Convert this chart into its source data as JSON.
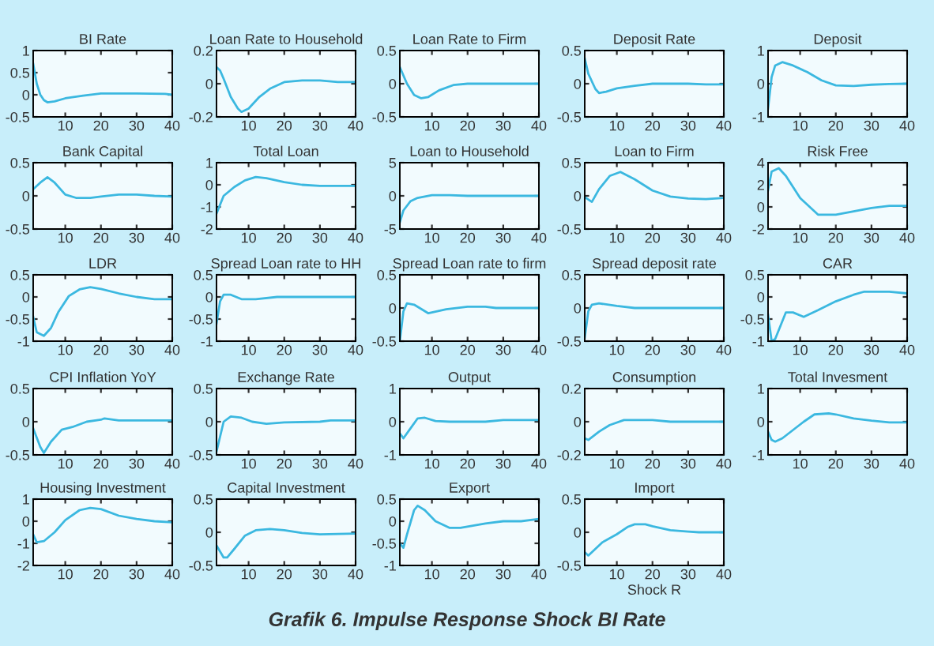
{
  "chart_data": [
    {
      "type": "line",
      "title": "BI Rate",
      "x": [
        1,
        2,
        3,
        4,
        5,
        7,
        10,
        15,
        20,
        30,
        38,
        40
      ],
      "series": [
        {
          "color": "#3bb8e0",
          "values": [
            0.7,
            0.25,
            0.0,
            -0.12,
            -0.17,
            -0.15,
            -0.08,
            -0.02,
            0.03,
            0.03,
            0.02,
            0.0
          ]
        }
      ],
      "xlim": [
        1,
        40
      ],
      "ylim": [
        -0.5,
        1
      ],
      "xticks": [
        10,
        20,
        30,
        40
      ],
      "yticks": [
        -0.5,
        0,
        0.5,
        1
      ]
    },
    {
      "type": "line",
      "title": "Loan Rate to Household",
      "x": [
        1,
        2,
        3,
        5,
        7,
        8,
        10,
        13,
        16,
        20,
        25,
        30,
        35,
        40
      ],
      "series": [
        {
          "color": "#3bb8e0",
          "values": [
            0.1,
            0.08,
            0.03,
            -0.08,
            -0.15,
            -0.17,
            -0.15,
            -0.08,
            -0.03,
            0.01,
            0.02,
            0.02,
            0.01,
            0.01
          ]
        }
      ],
      "xlim": [
        1,
        40
      ],
      "ylim": [
        -0.2,
        0.2
      ],
      "xticks": [
        10,
        20,
        30,
        40
      ],
      "yticks": [
        -0.2,
        0,
        0.2
      ]
    },
    {
      "type": "line",
      "title": "Loan Rate to Firm",
      "x": [
        1,
        3,
        5,
        7,
        9,
        12,
        16,
        20,
        30,
        40
      ],
      "series": [
        {
          "color": "#3bb8e0",
          "values": [
            0.25,
            0.0,
            -0.17,
            -0.22,
            -0.2,
            -0.1,
            -0.02,
            0.0,
            0.0,
            0.0
          ]
        }
      ],
      "xlim": [
        1,
        40
      ],
      "ylim": [
        -0.5,
        0.5
      ],
      "xticks": [
        10,
        20,
        30,
        40
      ],
      "yticks": [
        -0.5,
        0,
        0.5
      ]
    },
    {
      "type": "line",
      "title": "Deposit Rate",
      "x": [
        1,
        2,
        4,
        5,
        7,
        10,
        15,
        20,
        30,
        35,
        40
      ],
      "series": [
        {
          "color": "#3bb8e0",
          "values": [
            0.38,
            0.15,
            -0.08,
            -0.14,
            -0.12,
            -0.07,
            -0.03,
            0.0,
            0.0,
            -0.01,
            -0.01
          ]
        }
      ],
      "xlim": [
        1,
        40
      ],
      "ylim": [
        -0.5,
        0.5
      ],
      "xticks": [
        10,
        20,
        30,
        40
      ],
      "yticks": [
        -0.5,
        0,
        0.5
      ]
    },
    {
      "type": "line",
      "title": "Deposit",
      "x": [
        1,
        2,
        3,
        5,
        8,
        12,
        16,
        20,
        25,
        30,
        35,
        40
      ],
      "series": [
        {
          "color": "#3bb8e0",
          "values": [
            -0.75,
            0.2,
            0.55,
            0.65,
            0.55,
            0.35,
            0.1,
            -0.05,
            -0.07,
            -0.03,
            -0.01,
            0.0
          ]
        }
      ],
      "xlim": [
        1,
        40
      ],
      "ylim": [
        -1,
        1
      ],
      "xticks": [
        10,
        20,
        30,
        40
      ],
      "yticks": [
        -1,
        0,
        1
      ]
    },
    {
      "type": "line",
      "title": "Bank Capital",
      "x": [
        1,
        3,
        5,
        7,
        10,
        13,
        17,
        20,
        25,
        30,
        35,
        40
      ],
      "series": [
        {
          "color": "#3bb8e0",
          "values": [
            0.1,
            0.2,
            0.28,
            0.2,
            0.02,
            -0.03,
            -0.03,
            -0.01,
            0.02,
            0.02,
            0.0,
            -0.01
          ]
        }
      ],
      "xlim": [
        1,
        40
      ],
      "ylim": [
        -0.5,
        0.5
      ],
      "xticks": [
        10,
        20,
        30,
        40
      ],
      "yticks": [
        -0.5,
        0,
        0.5
      ]
    },
    {
      "type": "line",
      "title": "Total Loan",
      "x": [
        1,
        3,
        6,
        9,
        12,
        15,
        20,
        25,
        30,
        40
      ],
      "series": [
        {
          "color": "#3bb8e0",
          "values": [
            -1.3,
            -0.5,
            -0.1,
            0.2,
            0.35,
            0.3,
            0.12,
            0.0,
            -0.05,
            -0.05
          ]
        }
      ],
      "xlim": [
        1,
        40
      ],
      "ylim": [
        -2,
        1
      ],
      "xticks": [
        10,
        20,
        30,
        40
      ],
      "yticks": [
        -2,
        -1,
        0,
        1
      ]
    },
    {
      "type": "line",
      "title": "Loan to Household",
      "x": [
        1,
        2,
        4,
        6,
        10,
        15,
        20,
        30,
        40
      ],
      "series": [
        {
          "color": "#3bb8e0",
          "values": [
            -4.0,
            -2.2,
            -0.8,
            -0.3,
            0.1,
            0.1,
            0.0,
            0.0,
            0.0
          ]
        }
      ],
      "xlim": [
        1,
        40
      ],
      "ylim": [
        -5,
        5
      ],
      "xticks": [
        10,
        20,
        30,
        40
      ],
      "yticks": [
        -5,
        0,
        5
      ]
    },
    {
      "type": "line",
      "title": "Loan to Firm",
      "x": [
        1,
        3,
        5,
        8,
        11,
        15,
        20,
        25,
        30,
        35,
        40
      ],
      "series": [
        {
          "color": "#3bb8e0",
          "values": [
            -0.02,
            -0.09,
            0.1,
            0.3,
            0.36,
            0.25,
            0.08,
            -0.01,
            -0.04,
            -0.05,
            -0.03
          ]
        }
      ],
      "xlim": [
        1,
        40
      ],
      "ylim": [
        -0.5,
        0.5
      ],
      "xticks": [
        10,
        20,
        30,
        40
      ],
      "yticks": [
        -0.5,
        0,
        0.5
      ]
    },
    {
      "type": "line",
      "title": "Risk Free",
      "x": [
        1,
        2,
        4,
        6,
        10,
        15,
        20,
        25,
        30,
        35,
        40
      ],
      "series": [
        {
          "color": "#3bb8e0",
          "values": [
            1.5,
            3.2,
            3.5,
            2.8,
            0.8,
            -0.7,
            -0.7,
            -0.4,
            -0.1,
            0.1,
            0.1
          ]
        }
      ],
      "xlim": [
        1,
        40
      ],
      "ylim": [
        -2,
        4
      ],
      "xticks": [
        10,
        20,
        30,
        40
      ],
      "yticks": [
        -2,
        0,
        2,
        4
      ]
    },
    {
      "type": "line",
      "title": "LDR",
      "x": [
        1,
        2,
        4,
        6,
        8,
        11,
        14,
        17,
        20,
        25,
        30,
        35,
        40
      ],
      "series": [
        {
          "color": "#3bb8e0",
          "values": [
            -0.45,
            -0.8,
            -0.88,
            -0.7,
            -0.35,
            0.02,
            0.17,
            0.22,
            0.18,
            0.08,
            0.0,
            -0.05,
            -0.05
          ]
        }
      ],
      "xlim": [
        1,
        40
      ],
      "ylim": [
        -1,
        0.5
      ],
      "xticks": [
        10,
        20,
        30,
        40
      ],
      "yticks": [
        -1,
        -0.5,
        0,
        0.5
      ]
    },
    {
      "type": "line",
      "title": "Spread Loan rate to HH",
      "x": [
        1,
        2,
        3,
        5,
        8,
        12,
        18,
        40
      ],
      "series": [
        {
          "color": "#3bb8e0",
          "values": [
            -0.6,
            -0.1,
            0.05,
            0.05,
            -0.05,
            -0.05,
            0.0,
            0.0
          ]
        }
      ],
      "xlim": [
        1,
        40
      ],
      "ylim": [
        -1,
        0.5
      ],
      "xticks": [
        10,
        20,
        30,
        40
      ],
      "yticks": [
        -1,
        -0.5,
        0,
        0.5
      ]
    },
    {
      "type": "line",
      "title": "Spread Loan rate to firm",
      "x": [
        1,
        2,
        3,
        5,
        9,
        14,
        20,
        25,
        28,
        40
      ],
      "series": [
        {
          "color": "#3bb8e0",
          "values": [
            -0.5,
            -0.05,
            0.07,
            0.05,
            -0.08,
            -0.02,
            0.02,
            0.02,
            0.0,
            0.0
          ]
        }
      ],
      "xlim": [
        1,
        40
      ],
      "ylim": [
        -0.5,
        0.5
      ],
      "xticks": [
        10,
        20,
        30,
        40
      ],
      "yticks": [
        -0.5,
        0,
        0.5
      ]
    },
    {
      "type": "line",
      "title": "Spread deposit rate",
      "x": [
        1,
        2,
        3,
        5,
        10,
        15,
        40
      ],
      "series": [
        {
          "color": "#3bb8e0",
          "values": [
            -0.45,
            -0.05,
            0.05,
            0.07,
            0.03,
            0.0,
            0.0
          ]
        }
      ],
      "xlim": [
        1,
        40
      ],
      "ylim": [
        -0.5,
        0.5
      ],
      "xticks": [
        10,
        20,
        30,
        40
      ],
      "yticks": [
        -0.5,
        0,
        0.5
      ]
    },
    {
      "type": "line",
      "title": "CAR",
      "x": [
        1,
        2,
        3,
        6,
        8,
        11,
        15,
        20,
        25,
        28,
        35,
        40
      ],
      "series": [
        {
          "color": "#3bb8e0",
          "values": [
            -0.4,
            -1.0,
            -0.95,
            -0.35,
            -0.35,
            -0.45,
            -0.3,
            -0.1,
            0.05,
            0.12,
            0.12,
            0.08
          ]
        }
      ],
      "xlim": [
        1,
        40
      ],
      "ylim": [
        -1,
        0.5
      ],
      "xticks": [
        10,
        20,
        30,
        40
      ],
      "yticks": [
        -1,
        -0.5,
        0,
        0.5
      ]
    },
    {
      "type": "line",
      "title": "CPI Inflation YoY",
      "x": [
        1,
        3,
        4,
        6,
        9,
        12,
        16,
        20,
        21,
        25,
        40
      ],
      "series": [
        {
          "color": "#3bb8e0",
          "values": [
            -0.1,
            -0.38,
            -0.47,
            -0.3,
            -0.12,
            -0.08,
            0.0,
            0.03,
            0.05,
            0.02,
            0.02
          ]
        }
      ],
      "xlim": [
        1,
        40
      ],
      "ylim": [
        -0.5,
        0.5
      ],
      "xticks": [
        10,
        20,
        30,
        40
      ],
      "yticks": [
        -0.5,
        0,
        0.5
      ]
    },
    {
      "type": "line",
      "title": "Exchange Rate",
      "x": [
        1,
        3,
        5,
        8,
        11,
        15,
        20,
        30,
        33,
        40
      ],
      "series": [
        {
          "color": "#3bb8e0",
          "values": [
            -0.45,
            0.0,
            0.08,
            0.06,
            0.0,
            -0.03,
            -0.01,
            0.0,
            0.02,
            0.02
          ]
        }
      ],
      "xlim": [
        1,
        40
      ],
      "ylim": [
        -0.5,
        0.5
      ],
      "xticks": [
        10,
        20,
        30,
        40
      ],
      "yticks": [
        -0.5,
        0,
        0.5
      ]
    },
    {
      "type": "line",
      "title": "Output",
      "x": [
        1,
        2,
        4,
        6,
        8,
        11,
        15,
        25,
        30,
        40
      ],
      "series": [
        {
          "color": "#3bb8e0",
          "values": [
            -0.35,
            -0.5,
            -0.2,
            0.1,
            0.12,
            0.02,
            0.0,
            0.0,
            0.05,
            0.05
          ]
        }
      ],
      "xlim": [
        1,
        40
      ],
      "ylim": [
        -1,
        1
      ],
      "xticks": [
        10,
        20,
        30,
        40
      ],
      "yticks": [
        -1,
        0,
        1
      ]
    },
    {
      "type": "line",
      "title": "Consumption",
      "x": [
        1,
        2,
        5,
        8,
        12,
        20,
        25,
        40
      ],
      "series": [
        {
          "color": "#3bb8e0",
          "values": [
            -0.1,
            -0.11,
            -0.06,
            -0.02,
            0.01,
            0.01,
            0.0,
            0.0
          ]
        }
      ],
      "xlim": [
        1,
        40
      ],
      "ylim": [
        -0.2,
        0.2
      ],
      "xticks": [
        10,
        20,
        30,
        40
      ],
      "yticks": [
        -0.2,
        0,
        0.2
      ]
    },
    {
      "type": "line",
      "title": "Total Invesment",
      "x": [
        1,
        2,
        3,
        5,
        8,
        11,
        14,
        18,
        20,
        25,
        30,
        35,
        40
      ],
      "series": [
        {
          "color": "#3bb8e0",
          "values": [
            -0.3,
            -0.55,
            -0.6,
            -0.5,
            -0.25,
            0.0,
            0.22,
            0.25,
            0.22,
            0.1,
            0.03,
            -0.02,
            -0.02
          ]
        }
      ],
      "xlim": [
        1,
        40
      ],
      "ylim": [
        -1,
        1
      ],
      "xticks": [
        10,
        20,
        30,
        40
      ],
      "yticks": [
        -1,
        0,
        1
      ]
    },
    {
      "type": "line",
      "title": "Housing Investment",
      "x": [
        1,
        2,
        4,
        7,
        10,
        14,
        17,
        20,
        25,
        30,
        35,
        40
      ],
      "series": [
        {
          "color": "#3bb8e0",
          "values": [
            -0.6,
            -0.95,
            -0.9,
            -0.5,
            0.05,
            0.5,
            0.6,
            0.55,
            0.25,
            0.1,
            0.0,
            -0.05
          ]
        }
      ],
      "xlim": [
        1,
        40
      ],
      "ylim": [
        -2,
        1
      ],
      "xticks": [
        10,
        20,
        30,
        40
      ],
      "yticks": [
        -2,
        -1,
        0,
        1
      ]
    },
    {
      "type": "line",
      "title": "Capital Investment",
      "x": [
        1,
        3,
        4,
        6,
        9,
        12,
        16,
        20,
        25,
        30,
        40
      ],
      "series": [
        {
          "color": "#3bb8e0",
          "values": [
            -0.2,
            -0.38,
            -0.38,
            -0.25,
            -0.05,
            0.03,
            0.05,
            0.03,
            -0.01,
            -0.03,
            -0.02
          ]
        }
      ],
      "xlim": [
        1,
        40
      ],
      "ylim": [
        -0.5,
        0.5
      ],
      "xticks": [
        10,
        20,
        30,
        40
      ],
      "yticks": [
        -0.5,
        0,
        0.5
      ]
    },
    {
      "type": "line",
      "title": "Export",
      "x": [
        1,
        2,
        3,
        5,
        6,
        8,
        11,
        15,
        18,
        25,
        30,
        35,
        40
      ],
      "series": [
        {
          "color": "#3bb8e0",
          "values": [
            -0.5,
            -0.6,
            -0.3,
            0.25,
            0.35,
            0.25,
            0.0,
            -0.15,
            -0.15,
            -0.05,
            0.0,
            0.0,
            0.05
          ]
        }
      ],
      "xlim": [
        1,
        40
      ],
      "ylim": [
        -1,
        0.5
      ],
      "xticks": [
        10,
        20,
        30,
        40
      ],
      "yticks": [
        -1,
        -0.5,
        0,
        0.5
      ]
    },
    {
      "type": "line",
      "title": "Import",
      "xlabel": "Shock R",
      "annotations": [
        "Grafik 6. Impulse Response Shock BI Rate"
      ],
      "x": [
        1,
        2,
        4,
        6,
        10,
        13,
        15,
        18,
        20,
        25,
        30,
        33,
        40
      ],
      "series": [
        {
          "color": "#3bb8e0",
          "values": [
            -0.3,
            -0.35,
            -0.25,
            -0.15,
            -0.03,
            0.08,
            0.12,
            0.12,
            0.09,
            0.03,
            0.01,
            0.0,
            0.0
          ]
        }
      ],
      "xlim": [
        1,
        40
      ],
      "ylim": [
        -0.5,
        0.5
      ],
      "xticks": [
        10,
        20,
        30,
        40
      ],
      "yticks": [
        -0.5,
        0,
        0.5
      ]
    }
  ]
}
